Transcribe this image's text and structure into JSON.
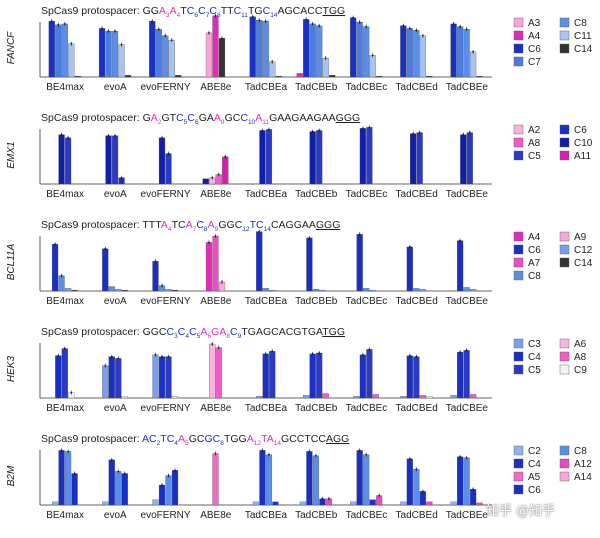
{
  "watermark": "知乎 @知乎",
  "categories": [
    "BE4max",
    "evoA",
    "evoFERNY",
    "ABE8e",
    "TadCBEa",
    "TadCBEb",
    "TadCBEc",
    "TadCBEd",
    "TadCBEe"
  ],
  "colors": {
    "A3": "#f9a6d6",
    "A4": "#e22cb8",
    "C6": "#1a2fc4",
    "C7": "#4b7ce0",
    "C8": "#5b8ee8",
    "C11": "#a8c2f4",
    "C14": "#333333",
    "A2": "#f9b4de",
    "A8": "#f35cc8",
    "C5": "#2b39c8",
    "C10": "#0f1fa8",
    "A11": "#d51fb0",
    "A7": "#e94fc0",
    "A9": "#f6a9d8",
    "C12": "#7c9eee",
    "C3": "#7aa0ec",
    "C4": "#1a2fc4",
    "A6": "#f7b6df",
    "C9": "#f2f2fa",
    "C2": "#8fb3f0",
    "A5": "#f06acc",
    "A12": "#e84bc0",
    "A14": "#f9a6d6"
  },
  "chart_data": [
    {
      "type": "bar",
      "title_prefix": "SpCas9 protospacer: ",
      "protospacer": [
        {
          "text": "GG",
          "sub": "",
          "color": "#222222"
        },
        {
          "text": "A",
          "sub": "3",
          "color": "#e22cb8"
        },
        {
          "text": "A",
          "sub": "4",
          "color": "#e22cb8"
        },
        {
          "text": "T",
          "sub": "",
          "color": "#222222"
        },
        {
          "text": "C",
          "sub": "6",
          "color": "#1a2fc4"
        },
        {
          "text": "C",
          "sub": "7",
          "color": "#1a2fc4"
        },
        {
          "text": "C",
          "sub": "8",
          "color": "#1a2fc4"
        },
        {
          "text": "TT",
          "sub": "",
          "color": "#222222"
        },
        {
          "text": "C",
          "sub": "11",
          "color": "#1a2fc4"
        },
        {
          "text": "TG",
          "sub": "",
          "color": "#222222"
        },
        {
          "text": "C",
          "sub": "14",
          "color": "#1a2fc4"
        },
        {
          "text": "AGCACC",
          "sub": "",
          "color": "#222222"
        },
        {
          "text": "TGG",
          "sub": "",
          "color": "#222222",
          "underline": true
        }
      ],
      "ylabel": "FANCF",
      "ylim": [
        0,
        70
      ],
      "legend": [
        "A3",
        "A4",
        "C6",
        "C7",
        "C8",
        "C11",
        "C14"
      ],
      "series": [
        {
          "name": "A3",
          "values": [
            0,
            0,
            0,
            49,
            0,
            0,
            0,
            0,
            0
          ]
        },
        {
          "name": "A4",
          "values": [
            0,
            0,
            0,
            68,
            0,
            4,
            0,
            0,
            0
          ]
        },
        {
          "name": "C6",
          "values": [
            62,
            54,
            62,
            0,
            67,
            64,
            66,
            57,
            59
          ]
        },
        {
          "name": "C7",
          "values": [
            58,
            51,
            53,
            0,
            63,
            59,
            61,
            54,
            56
          ]
        },
        {
          "name": "C8",
          "values": [
            59,
            51,
            46,
            0,
            62,
            57,
            56,
            52,
            53
          ]
        },
        {
          "name": "C11",
          "values": [
            37,
            36,
            41,
            0,
            17,
            21,
            24,
            46,
            28
          ]
        },
        {
          "name": "C14",
          "values": [
            1,
            2,
            2,
            43,
            1,
            2,
            1,
            1,
            1
          ]
        }
      ]
    },
    {
      "type": "bar",
      "title_prefix": "SpCas9 protospacer: ",
      "protospacer": [
        {
          "text": "G",
          "sub": "",
          "color": "#222222"
        },
        {
          "text": "A",
          "sub": "2",
          "color": "#e22cb8"
        },
        {
          "text": "GT",
          "sub": "",
          "color": "#222222"
        },
        {
          "text": "C",
          "sub": "5",
          "color": "#1a2fc4"
        },
        {
          "text": "C",
          "sub": "6",
          "color": "#1a2fc4"
        },
        {
          "text": "GA",
          "sub": "",
          "color": "#222222"
        },
        {
          "text": "A",
          "sub": "8",
          "color": "#e22cb8"
        },
        {
          "text": "GC",
          "sub": "",
          "color": "#222222"
        },
        {
          "text": "C",
          "sub": "10",
          "color": "#1a2fc4"
        },
        {
          "text": "A",
          "sub": "11",
          "color": "#e22cb8"
        },
        {
          "text": "GAAGAAGAA",
          "sub": "",
          "color": "#222222"
        },
        {
          "text": "GGG",
          "sub": "",
          "color": "#222222",
          "underline": true
        }
      ],
      "ylabel": "EMX1",
      "ylim": [
        0,
        60
      ],
      "legend": [
        "A2",
        "A8",
        "C5",
        "C6",
        "C10",
        "A11"
      ],
      "series": [
        {
          "name": "C10",
          "values": [
            47,
            46,
            44,
            5,
            51,
            50,
            53,
            48,
            47
          ]
        },
        {
          "name": "C5",
          "values": [
            44,
            46,
            29,
            0,
            52,
            51,
            54,
            49,
            49
          ]
        },
        {
          "name": "C6",
          "values": [
            0,
            6,
            0,
            0,
            0,
            0,
            0,
            0,
            0
          ]
        },
        {
          "name": "A2",
          "values": [
            0,
            0,
            0,
            6,
            0,
            0,
            0,
            0,
            0
          ]
        },
        {
          "name": "A8",
          "values": [
            0,
            0,
            0,
            9,
            0,
            0,
            0,
            0,
            0
          ]
        },
        {
          "name": "A11",
          "values": [
            0,
            0,
            0,
            26,
            0,
            0,
            0,
            0,
            0
          ]
        }
      ]
    },
    {
      "type": "bar",
      "title_prefix": "SpCas9 protospacer: ",
      "protospacer": [
        {
          "text": "TTT",
          "sub": "",
          "color": "#222222"
        },
        {
          "text": "A",
          "sub": "4",
          "color": "#e22cb8"
        },
        {
          "text": "TC",
          "sub": "",
          "color": "#222222"
        },
        {
          "text": "A",
          "sub": "7",
          "color": "#e22cb8"
        },
        {
          "text": "C",
          "sub": "8",
          "color": "#1a2fc4"
        },
        {
          "text": "A",
          "sub": "9",
          "color": "#e22cb8"
        },
        {
          "text": "GGC",
          "sub": "",
          "color": "#222222"
        },
        {
          "text": "",
          "sub": "12",
          "color": "#1a2fc4"
        },
        {
          "text": "TC",
          "sub": "14",
          "color": "#1a2fc4"
        },
        {
          "text": "CAGGAA",
          "sub": "",
          "color": "#222222"
        },
        {
          "text": "GGG",
          "sub": "",
          "color": "#222222",
          "underline": true
        }
      ],
      "ylabel": "BCL11A",
      "ylim": [
        0,
        70
      ],
      "legend": [
        "A4",
        "C6",
        "A7",
        "C8",
        "A9",
        "C12",
        "C14"
      ],
      "series": [
        {
          "name": "C6",
          "values": [
            52,
            47,
            33,
            0,
            66,
            59,
            63,
            49,
            56
          ]
        },
        {
          "name": "C8",
          "values": [
            17,
            5,
            6,
            0,
            3,
            2,
            3,
            3,
            4
          ]
        },
        {
          "name": "A4",
          "values": [
            0,
            0,
            0,
            54,
            0,
            0,
            0,
            0,
            0
          ]
        },
        {
          "name": "A7",
          "values": [
            0,
            0,
            0,
            61,
            0,
            0,
            0,
            0,
            0
          ]
        },
        {
          "name": "A9",
          "values": [
            0,
            0,
            0,
            10,
            0,
            0,
            0,
            0,
            0
          ]
        },
        {
          "name": "C12",
          "values": [
            3,
            2,
            2,
            0,
            1,
            1,
            1,
            2,
            2
          ]
        },
        {
          "name": "C14",
          "values": [
            1,
            1,
            1,
            0,
            0,
            0,
            0,
            0,
            0
          ]
        }
      ]
    },
    {
      "type": "bar",
      "title_prefix": "SpCas9 protospacer: ",
      "protospacer": [
        {
          "text": "GGC",
          "sub": "",
          "color": "#222222"
        },
        {
          "text": "C",
          "sub": "3",
          "color": "#1a2fc4"
        },
        {
          "text": "C",
          "sub": "4",
          "color": "#1a2fc4"
        },
        {
          "text": "C",
          "sub": "5",
          "color": "#1a2fc4"
        },
        {
          "text": "A",
          "sub": "6",
          "color": "#e22cb8"
        },
        {
          "text": "GA",
          "sub": "8",
          "color": "#e22cb8"
        },
        {
          "text": "C",
          "sub": "9",
          "color": "#1a2fc4"
        },
        {
          "text": "TGAGCACGTGA",
          "sub": "",
          "color": "#222222"
        },
        {
          "text": "TGG",
          "sub": "",
          "color": "#222222",
          "underline": true
        }
      ],
      "ylabel": "HEK3",
      "ylim": [
        0,
        70
      ],
      "legend": [
        "C3",
        "C4",
        "C5",
        "A6",
        "A8",
        "C9"
      ],
      "series": [
        {
          "name": "C3",
          "values": [
            0,
            36,
            48,
            0,
            2,
            3,
            2,
            2,
            3
          ]
        },
        {
          "name": "C4",
          "values": [
            47,
            46,
            46,
            0,
            49,
            49,
            48,
            47,
            51
          ]
        },
        {
          "name": "C5",
          "values": [
            55,
            44,
            46,
            0,
            52,
            50,
            54,
            46,
            53
          ]
        },
        {
          "name": "A6",
          "values": [
            0,
            0,
            0,
            60,
            0,
            0,
            0,
            0,
            0
          ]
        },
        {
          "name": "A8",
          "values": [
            0,
            0,
            0,
            56,
            0,
            5,
            4,
            3,
            4
          ]
        },
        {
          "name": "C9",
          "values": [
            6,
            2,
            2,
            0,
            0,
            0,
            0,
            2,
            1
          ]
        }
      ]
    },
    {
      "type": "bar",
      "title_prefix": "SpCas9 protospacer: ",
      "protospacer": [
        {
          "text": "AC",
          "sub": "2",
          "color": "#1a2fc4"
        },
        {
          "text": "TC",
          "sub": "4",
          "color": "#1a2fc4"
        },
        {
          "text": "A",
          "sub": "5",
          "color": "#e22cb8"
        },
        {
          "text": "GC",
          "sub": "",
          "color": "#222222"
        },
        {
          "text": "GC",
          "sub": "8",
          "color": "#1a2fc4"
        },
        {
          "text": "TGG",
          "sub": "",
          "color": "#222222"
        },
        {
          "text": "A",
          "sub": "12",
          "color": "#e22cb8"
        },
        {
          "text": "TA",
          "sub": "14",
          "color": "#e22cb8"
        },
        {
          "text": "GCCTCC",
          "sub": "",
          "color": "#222222"
        },
        {
          "text": "AGG",
          "sub": "",
          "color": "#222222",
          "underline": true
        }
      ],
      "ylabel": "B2M",
      "ylim": [
        0,
        60
      ],
      "legend": [
        "C2",
        "C4",
        "A5",
        "C6",
        "C8",
        "A12",
        "A14"
      ],
      "series": [
        {
          "name": "C2",
          "values": [
            3,
            3,
            5,
            0,
            3,
            3,
            3,
            3,
            3
          ]
        },
        {
          "name": "C4",
          "values": [
            52,
            43,
            19,
            0,
            52,
            51,
            52,
            44,
            46
          ]
        },
        {
          "name": "C8",
          "values": [
            51,
            32,
            28,
            0,
            48,
            47,
            48,
            34,
            45
          ]
        },
        {
          "name": "C6",
          "values": [
            30,
            30,
            33,
            0,
            3,
            6,
            5,
            13,
            15
          ]
        },
        {
          "name": "A5",
          "values": [
            0,
            0,
            0,
            49,
            0,
            0,
            0,
            0,
            0
          ]
        },
        {
          "name": "A12",
          "values": [
            0,
            0,
            0,
            0,
            0,
            6,
            9,
            3,
            2
          ]
        },
        {
          "name": "A14",
          "values": [
            0,
            0,
            0,
            0,
            0,
            0,
            0,
            0,
            0
          ]
        }
      ]
    }
  ]
}
